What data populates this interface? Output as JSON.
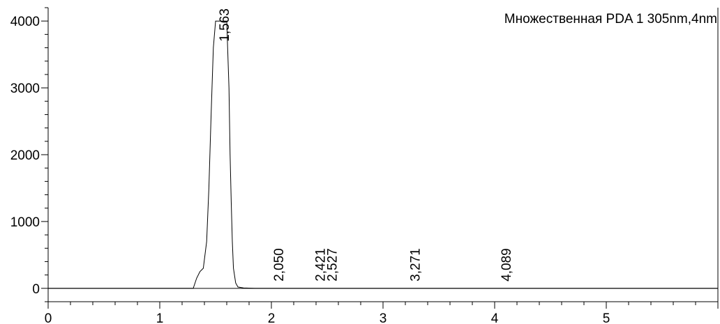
{
  "chart_data": {
    "type": "line",
    "title": "Множественная PDA 1 305nm,4nm",
    "xlabel": "",
    "ylabel": "",
    "xlim": [
      0,
      6
    ],
    "ylim": [
      -200,
      4200
    ],
    "x_ticks": [
      0,
      1,
      2,
      3,
      4,
      5
    ],
    "x_tick_labels": [
      "0",
      "1",
      "2",
      "3",
      "4",
      "5"
    ],
    "y_ticks": [
      0,
      1000,
      2000,
      3000,
      4000
    ],
    "y_tick_labels": [
      "0",
      "1000",
      "2000",
      "3000",
      "4000"
    ],
    "grid": false,
    "series": [
      {
        "color": "#000000",
        "x": [
          0.0,
          1.2,
          1.3,
          1.33,
          1.36,
          1.39,
          1.42,
          1.44,
          1.46,
          1.48,
          1.5,
          1.52,
          1.6,
          1.62,
          1.63,
          1.64,
          1.65,
          1.66,
          1.68,
          1.7,
          1.75,
          1.85,
          2.0,
          6.0
        ],
        "y": [
          0,
          0,
          0,
          150,
          250,
          300,
          700,
          1500,
          2600,
          3600,
          4000,
          4000,
          4000,
          3000,
          2000,
          1300,
          700,
          300,
          80,
          20,
          5,
          0,
          0,
          0
        ]
      }
    ],
    "peak_labels": [
      {
        "x": 1.563,
        "text": "1,563"
      },
      {
        "x": 2.05,
        "text": "2,050"
      },
      {
        "x": 2.421,
        "text": "2,421"
      },
      {
        "x": 2.527,
        "text": "2,527"
      },
      {
        "x": 3.271,
        "text": "3,271"
      },
      {
        "x": 4.089,
        "text": "4,089"
      }
    ]
  }
}
